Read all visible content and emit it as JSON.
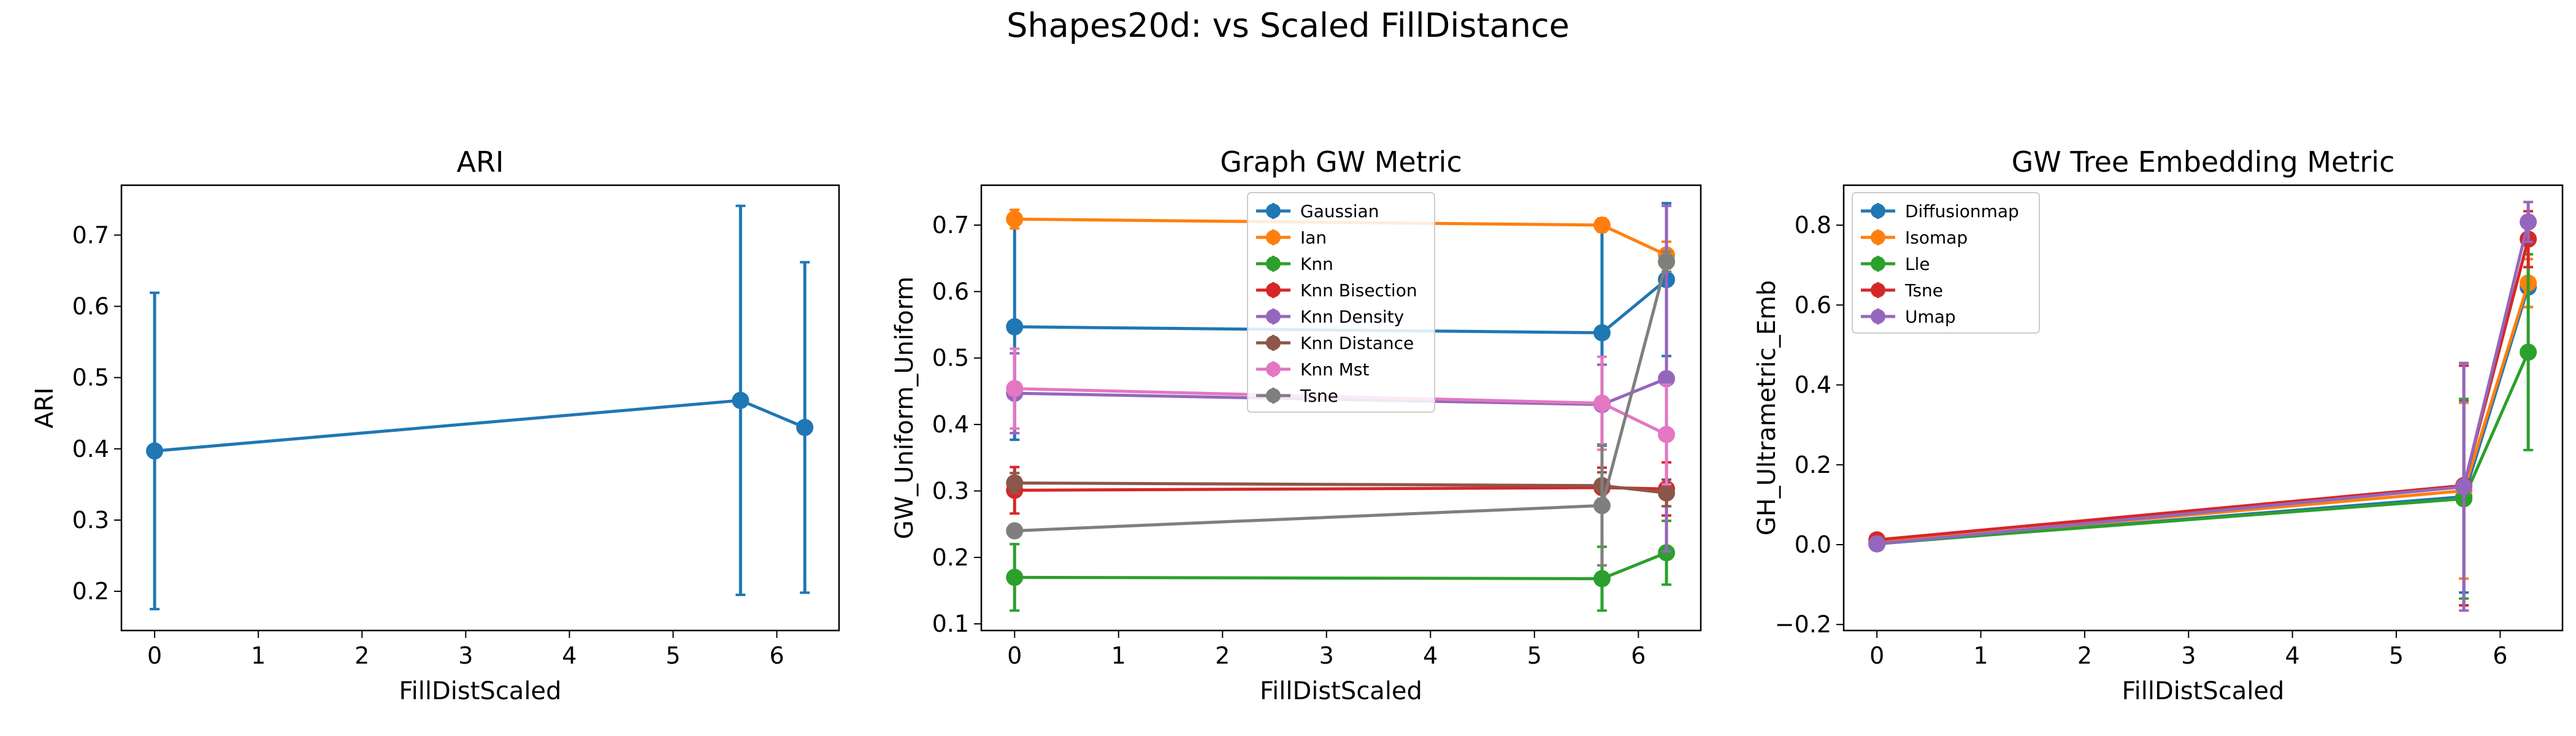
{
  "suptitle": "Shapes20d: vs Scaled FillDistance",
  "chart_data": [
    {
      "type": "line",
      "title": "ARI",
      "xlabel": "FillDistScaled",
      "ylabel": "ARI",
      "xlim": [
        -0.32,
        6.6
      ],
      "ylim": [
        0.145,
        0.77
      ],
      "xticks": [
        0,
        1,
        2,
        3,
        4,
        5,
        6
      ],
      "yticks": [
        0.2,
        0.3,
        0.4,
        0.5,
        0.6,
        0.7
      ],
      "legend": null,
      "series": [
        {
          "color": "#1f77b4",
          "points": [
            {
              "x": 0.0,
              "y": 0.397,
              "err": 0.222
            },
            {
              "x": 5.65,
              "y": 0.468,
              "err": 0.273
            },
            {
              "x": 6.27,
              "y": 0.43,
              "err": 0.232
            }
          ]
        }
      ]
    },
    {
      "type": "line",
      "title": "Graph GW Metric",
      "xlabel": "FillDistScaled",
      "ylabel": "GW_Uniform_Uniform",
      "xlim": [
        -0.32,
        6.6
      ],
      "ylim": [
        0.09,
        0.76
      ],
      "xticks": [
        0,
        1,
        2,
        3,
        4,
        5,
        6
      ],
      "yticks": [
        0.1,
        0.2,
        0.3,
        0.4,
        0.5,
        0.6,
        0.7
      ],
      "legend": "upper center",
      "series": [
        {
          "name": "Gaussian",
          "color": "#1f77b4",
          "points": [
            {
              "x": 0.0,
              "y": 0.547,
              "err": 0.17
            },
            {
              "x": 5.65,
              "y": 0.538,
              "err": 0.17
            },
            {
              "x": 6.27,
              "y": 0.618,
              "err": 0.115
            }
          ]
        },
        {
          "name": "Ian",
          "color": "#ff7f0e",
          "points": [
            {
              "x": 0.0,
              "y": 0.709,
              "err": 0.014
            },
            {
              "x": 5.65,
              "y": 0.7,
              "err": 0.01
            },
            {
              "x": 6.27,
              "y": 0.655,
              "err": 0.02
            }
          ]
        },
        {
          "name": "Knn",
          "color": "#2ca02c",
          "points": [
            {
              "x": 0.0,
              "y": 0.17,
              "err": 0.05
            },
            {
              "x": 5.65,
              "y": 0.168,
              "err": 0.048
            },
            {
              "x": 6.27,
              "y": 0.207,
              "err": 0.048
            }
          ]
        },
        {
          "name": "Knn Bisection",
          "color": "#d62728",
          "points": [
            {
              "x": 0.0,
              "y": 0.301,
              "err": 0.035
            },
            {
              "x": 5.65,
              "y": 0.305,
              "err": 0.03
            },
            {
              "x": 6.27,
              "y": 0.303,
              "err": 0.04
            }
          ]
        },
        {
          "name": "Knn Density",
          "color": "#9467bd",
          "points": [
            {
              "x": 0.0,
              "y": 0.447,
              "err": 0.06
            },
            {
              "x": 5.65,
              "y": 0.43,
              "err": 0.06
            },
            {
              "x": 6.27,
              "y": 0.469,
              "err": 0.26
            }
          ]
        },
        {
          "name": "Knn Distance",
          "color": "#8c564b",
          "points": [
            {
              "x": 0.0,
              "y": 0.312,
              "err": 0.015
            },
            {
              "x": 5.65,
              "y": 0.308,
              "err": 0.02
            },
            {
              "x": 6.27,
              "y": 0.297,
              "err": 0.02
            }
          ]
        },
        {
          "name": "Knn Mst",
          "color": "#e377c2",
          "points": [
            {
              "x": 0.0,
              "y": 0.454,
              "err": 0.06
            },
            {
              "x": 5.65,
              "y": 0.432,
              "err": 0.07
            },
            {
              "x": 6.27,
              "y": 0.385,
              "err": 0.075
            }
          ]
        },
        {
          "name": "Tsne",
          "color": "#7f7f7f",
          "points": [
            {
              "x": 0.0,
              "y": 0.24,
              "err": 0.0
            },
            {
              "x": 5.65,
              "y": 0.278,
              "err": 0.09
            },
            {
              "x": 6.27,
              "y": 0.645,
              "err": 0.015
            }
          ]
        }
      ]
    },
    {
      "type": "line",
      "title": "GW Tree Embedding Metric",
      "xlabel": "FillDistScaled",
      "ylabel": "GH_Ultrametric_Emb",
      "xlim": [
        -0.32,
        6.6
      ],
      "ylim": [
        -0.215,
        0.9
      ],
      "xticks": [
        0,
        1,
        2,
        3,
        4,
        5,
        6
      ],
      "yticks": [
        -0.2,
        0.0,
        0.2,
        0.4,
        0.6,
        0.8
      ],
      "legend": "upper left",
      "series": [
        {
          "name": "Diffusionmap",
          "color": "#1f77b4",
          "points": [
            {
              "x": 0.0,
              "y": 0.002,
              "err": 0.004
            },
            {
              "x": 5.65,
              "y": 0.12,
              "err": 0.24
            },
            {
              "x": 6.27,
              "y": 0.645,
              "err": 0.05
            }
          ]
        },
        {
          "name": "Isomap",
          "color": "#ff7f0e",
          "points": [
            {
              "x": 0.0,
              "y": 0.005,
              "err": 0.004
            },
            {
              "x": 5.65,
              "y": 0.135,
              "err": 0.22
            },
            {
              "x": 6.27,
              "y": 0.655,
              "err": 0.06
            }
          ]
        },
        {
          "name": "Lle",
          "color": "#2ca02c",
          "points": [
            {
              "x": 0.0,
              "y": 0.003,
              "err": 0.003
            },
            {
              "x": 5.65,
              "y": 0.115,
              "err": 0.25
            },
            {
              "x": 6.27,
              "y": 0.482,
              "err": 0.245
            }
          ]
        },
        {
          "name": "Tsne",
          "color": "#d62728",
          "points": [
            {
              "x": 0.0,
              "y": 0.012,
              "err": 0.005
            },
            {
              "x": 5.65,
              "y": 0.148,
              "err": 0.3
            },
            {
              "x": 6.27,
              "y": 0.765,
              "err": 0.07
            }
          ]
        },
        {
          "name": "Umap",
          "color": "#9467bd",
          "points": [
            {
              "x": 0.0,
              "y": 0.002,
              "err": 0.004
            },
            {
              "x": 5.65,
              "y": 0.145,
              "err": 0.31
            },
            {
              "x": 6.27,
              "y": 0.808,
              "err": 0.05
            }
          ]
        }
      ]
    }
  ]
}
